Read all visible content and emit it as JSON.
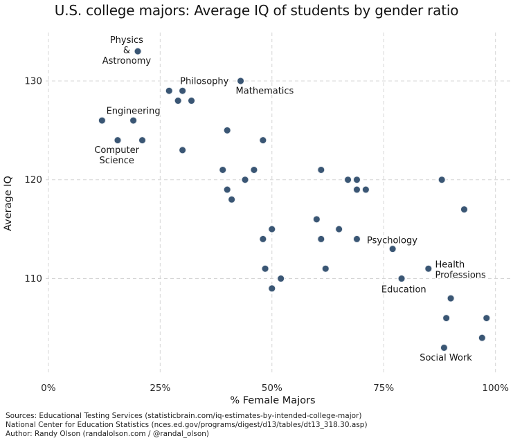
{
  "chart_data": {
    "type": "scatter",
    "title": "U.S. college majors: Average IQ of students by gender ratio",
    "xlabel": "% Female Majors",
    "ylabel": "Average IQ",
    "xlim": [
      -0.6,
      103.3
    ],
    "ylim": [
      100.3,
      134.9
    ],
    "x_ticks": {
      "values": [
        0,
        25,
        50,
        75,
        100
      ],
      "labels": [
        "0%",
        "25%",
        "50%",
        "75%",
        "100%"
      ]
    },
    "y_ticks": {
      "values": [
        110,
        120,
        130
      ],
      "labels": [
        "110",
        "120",
        "130"
      ]
    },
    "grid": "dashed",
    "legend": "none",
    "point_color": "#3a5674",
    "grid_color": "#d4d4d4",
    "points": [
      {
        "x": 20,
        "y": 133,
        "label": "Physics & Astronomy"
      },
      {
        "x": 27,
        "y": 129
      },
      {
        "x": 30,
        "y": 129,
        "label": "Philosophy"
      },
      {
        "x": 29,
        "y": 128
      },
      {
        "x": 32,
        "y": 128
      },
      {
        "x": 43,
        "y": 130,
        "label": "Mathematics"
      },
      {
        "x": 12,
        "y": 126
      },
      {
        "x": 19,
        "y": 126,
        "label": "Engineering"
      },
      {
        "x": 15.5,
        "y": 124,
        "label": "Computer Science"
      },
      {
        "x": 21,
        "y": 124
      },
      {
        "x": 40,
        "y": 125
      },
      {
        "x": 48,
        "y": 124
      },
      {
        "x": 30,
        "y": 123
      },
      {
        "x": 39,
        "y": 121
      },
      {
        "x": 46,
        "y": 121
      },
      {
        "x": 44,
        "y": 120
      },
      {
        "x": 40,
        "y": 119
      },
      {
        "x": 41,
        "y": 118
      },
      {
        "x": 61,
        "y": 121
      },
      {
        "x": 67,
        "y": 120
      },
      {
        "x": 69,
        "y": 120
      },
      {
        "x": 69,
        "y": 119
      },
      {
        "x": 71,
        "y": 119
      },
      {
        "x": 88,
        "y": 120
      },
      {
        "x": 93,
        "y": 117
      },
      {
        "x": 60,
        "y": 116
      },
      {
        "x": 65,
        "y": 115
      },
      {
        "x": 50,
        "y": 115
      },
      {
        "x": 48,
        "y": 114
      },
      {
        "x": 61,
        "y": 114
      },
      {
        "x": 69,
        "y": 114
      },
      {
        "x": 77,
        "y": 113,
        "label": "Psychology"
      },
      {
        "x": 48.5,
        "y": 111
      },
      {
        "x": 52,
        "y": 110
      },
      {
        "x": 50,
        "y": 109
      },
      {
        "x": 62,
        "y": 111
      },
      {
        "x": 85,
        "y": 111,
        "label": "Health Professions"
      },
      {
        "x": 79,
        "y": 110,
        "label": "Education"
      },
      {
        "x": 90,
        "y": 108
      },
      {
        "x": 89,
        "y": 106
      },
      {
        "x": 98,
        "y": 106
      },
      {
        "x": 97,
        "y": 104
      },
      {
        "x": 88.5,
        "y": 103,
        "label": "Social Work"
      }
    ],
    "annotations": [
      {
        "lines": [
          "Physics",
          "&",
          "Astronomy"
        ],
        "x": 17.5,
        "y": 133.1,
        "align": "middle"
      },
      {
        "lines": [
          "Philosophy"
        ],
        "x": 34.9,
        "y": 130.0,
        "align": "middle"
      },
      {
        "lines": [
          "Mathematics"
        ],
        "x": 48.4,
        "y": 129.0,
        "align": "middle"
      },
      {
        "lines": [
          "Engineering"
        ],
        "x": 19.0,
        "y": 127.0,
        "align": "middle"
      },
      {
        "lines": [
          "Computer",
          "Science"
        ],
        "x": 15.3,
        "y": 122.5,
        "align": "middle"
      },
      {
        "lines": [
          "Psychology"
        ],
        "x": 76.9,
        "y": 113.9,
        "align": "middle"
      },
      {
        "lines": [
          "Health",
          "Professions"
        ],
        "x": 86.5,
        "y": 110.9,
        "align": "start"
      },
      {
        "lines": [
          "Education"
        ],
        "x": 79.5,
        "y": 108.9,
        "align": "middle"
      },
      {
        "lines": [
          "Social Work"
        ],
        "x": 88.9,
        "y": 102.0,
        "align": "middle"
      }
    ]
  },
  "footer": {
    "lines": [
      "Sources: Educational Testing Services (statisticbrain.com/iq-estimates-by-intended-college-major)",
      "National Center for Education Statistics (nces.ed.gov/programs/digest/d13/tables/dt13_318.30.asp)",
      "Author: Randy Olson (randalolson.com / @randal_olson)"
    ]
  }
}
